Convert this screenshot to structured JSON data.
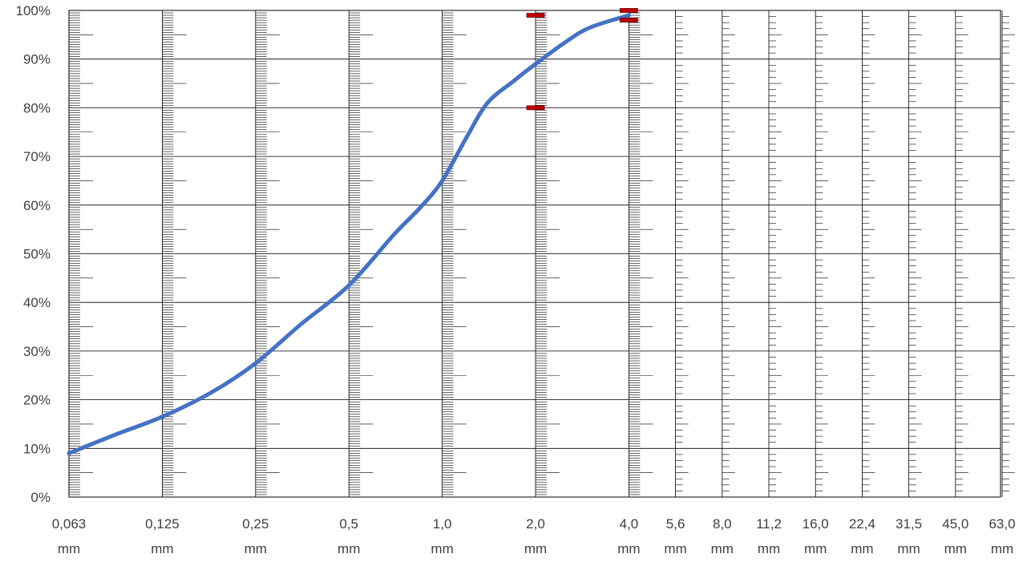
{
  "chart_data": {
    "type": "line",
    "title": "",
    "xlabel": "",
    "ylabel": "",
    "y_tick_labels": [
      "0%",
      "10%",
      "20%",
      "30%",
      "40%",
      "50%",
      "60%",
      "70%",
      "80%",
      "90%",
      "100%"
    ],
    "ylim": [
      0,
      100
    ],
    "x_categories": [
      {
        "value": "0,063",
        "unit": "mm"
      },
      {
        "value": "0,125",
        "unit": "mm"
      },
      {
        "value": "0,25",
        "unit": "mm"
      },
      {
        "value": "0,5",
        "unit": "mm"
      },
      {
        "value": "1,0",
        "unit": "mm"
      },
      {
        "value": "2,0",
        "unit": "mm"
      },
      {
        "value": "4,0",
        "unit": "mm"
      },
      {
        "value": "5,6",
        "unit": "mm"
      },
      {
        "value": "8,0",
        "unit": "mm"
      },
      {
        "value": "11,2",
        "unit": "mm"
      },
      {
        "value": "16,0",
        "unit": "mm"
      },
      {
        "value": "22,4",
        "unit": "mm"
      },
      {
        "value": "31,5",
        "unit": "mm"
      },
      {
        "value": "45,0",
        "unit": "mm"
      },
      {
        "value": "63,0",
        "unit": "mm"
      }
    ],
    "grid": true,
    "series": [
      {
        "color": "#4472C4",
        "points": [
          {
            "x": "0,063",
            "y": 9
          },
          {
            "x": "0,09",
            "y": 13
          },
          {
            "x": "0,125",
            "y": 16.5
          },
          {
            "x": "0,18",
            "y": 21.5
          },
          {
            "x": "0,25",
            "y": 27.5
          },
          {
            "x": "0,35",
            "y": 35.5
          },
          {
            "x": "0,5",
            "y": 43.5
          },
          {
            "x": "0,7",
            "y": 54
          },
          {
            "x": "0,85",
            "y": 59.5
          },
          {
            "x": "1,0",
            "y": 65
          },
          {
            "x": "1,2",
            "y": 74
          },
          {
            "x": "1,4",
            "y": 81
          },
          {
            "x": "1,7",
            "y": 85.5
          },
          {
            "x": "2,0",
            "y": 89
          },
          {
            "x": "2,5",
            "y": 93.5
          },
          {
            "x": "3,0",
            "y": 96.5
          },
          {
            "x": "4,0",
            "y": 99
          }
        ]
      }
    ],
    "limit_markers": [
      {
        "x": "2,0",
        "y": 99
      },
      {
        "x": "2,0",
        "y": 80
      },
      {
        "x": "4,0",
        "y": 100
      },
      {
        "x": "4,0",
        "y": 98
      }
    ],
    "marker_color": "#C00000"
  }
}
